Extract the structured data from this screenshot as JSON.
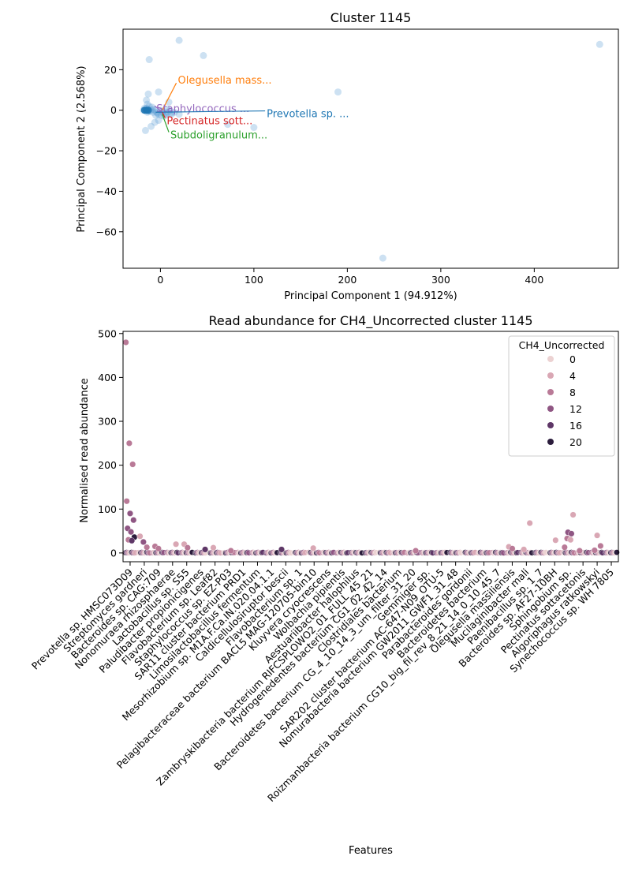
{
  "chart_data": [
    {
      "type": "scatter",
      "title": "Cluster 1145",
      "xlabel": "Principal Component 1 (94.912%)",
      "ylabel": "Principal Component 2 (2.568%)",
      "xlim": [
        -40,
        490
      ],
      "ylim": [
        -78,
        40
      ],
      "xticks": [
        0,
        100,
        200,
        300,
        400
      ],
      "yticks": [
        20,
        0,
        -20,
        -40,
        -60
      ],
      "point_color": "#5b9bd5",
      "highlight_color": "#1f77b4",
      "points": [
        [
          -16,
          0
        ],
        [
          -15,
          1
        ],
        [
          -14,
          -1
        ],
        [
          -13,
          0.5
        ],
        [
          -12,
          2
        ],
        [
          -14,
          3
        ],
        [
          -15,
          5
        ],
        [
          -13,
          -0.5
        ],
        [
          -10,
          0
        ],
        [
          -8,
          -1
        ],
        [
          -6,
          0
        ],
        [
          -4,
          -1
        ],
        [
          -2,
          -2
        ],
        [
          0,
          0
        ],
        [
          2,
          -1
        ],
        [
          4,
          -3
        ],
        [
          6,
          -2
        ],
        [
          8,
          -1
        ],
        [
          10,
          0
        ],
        [
          12,
          -2
        ],
        [
          15,
          -1
        ],
        [
          20,
          -2
        ],
        [
          -16,
          -10
        ],
        [
          -10,
          -8
        ],
        [
          -6,
          -6
        ],
        [
          -2,
          -5
        ],
        [
          -12,
          25
        ],
        [
          -13,
          8
        ],
        [
          -2,
          9
        ],
        [
          9,
          4
        ],
        [
          -8,
          0.5
        ],
        [
          -18,
          0
        ],
        [
          -17,
          1
        ],
        [
          -11,
          -0.5
        ],
        [
          -9,
          1.5
        ],
        [
          -5,
          -2.5
        ],
        [
          -3,
          -1.5
        ],
        [
          1,
          -2.5
        ],
        [
          3,
          -0.5
        ],
        [
          5,
          -1.5
        ],
        [
          7,
          0.5
        ],
        [
          11,
          -1.5
        ],
        [
          20,
          34.5
        ],
        [
          46,
          27
        ],
        [
          72,
          -7
        ],
        [
          100,
          -8.5
        ],
        [
          190,
          9
        ],
        [
          238,
          -73
        ],
        [
          470,
          32.5
        ]
      ],
      "highlighted_points": [
        [
          -17,
          0
        ],
        [
          -15,
          0
        ],
        [
          -13,
          0
        ]
      ],
      "annotations": [
        {
          "text": "Olegusella mass...",
          "color": "#ff7f0e",
          "x": 17,
          "y": 15,
          "px": 2,
          "py": 0
        },
        {
          "text": "Staphylococcus ...",
          "color": "#9467bd",
          "x": -6,
          "y": 1,
          "px": 2,
          "py": -1
        },
        {
          "text": "Prevotella sp. ...",
          "color": "#1f77b4",
          "x": 112,
          "y": -1.5,
          "px": -5,
          "py": -1
        },
        {
          "text": "Pectinatus sott...",
          "color": "#d62728",
          "x": 5,
          "y": -5,
          "px": 2,
          "py": -1
        },
        {
          "text": "Subdoligranulum...",
          "color": "#2ca02c",
          "x": 9,
          "y": -12,
          "px": 2,
          "py": -2
        }
      ]
    },
    {
      "type": "scatter",
      "title": "Read abundance for CH4_Uncorrected cluster 1145",
      "xlabel": "Features",
      "ylabel": "Normalised read abundance",
      "ylim": [
        -20,
        505
      ],
      "yticks": [
        0,
        100,
        200,
        300,
        400,
        500
      ],
      "legend_title": "CH4_Uncorrected",
      "legend_position": "top-right",
      "legend_entries": [
        "0",
        "4",
        "8",
        "12",
        "16",
        "20"
      ],
      "legend_colors": [
        "#ecd2d2",
        "#d9a7b4",
        "#b97a97",
        "#8f5683",
        "#5e3767",
        "#2b1c3c"
      ],
      "categories": [
        "Prevotella sp. HMSC073D09",
        "Streptomyces gardneri",
        "Bacteroides sp. CAG:709",
        "Nonomuraea rhizosphaerae",
        "Lactobacillus sp. S55",
        "Paludibacter propionicigenes",
        "Flavobacterium sp. Leaf82",
        "Staphylococcus sp. EZ-P03",
        "SAR11 cluster bacterium PRD1",
        "Limosilactobacillus fermentum",
        "Mesorhizobium sp. M1A.F.Ca.IN.020.04.1.1",
        "Caldicellulosiruptor bescii",
        "Flavobacterium sp. 1",
        "Pelagibacteraceae bacterium BACL5 MAG-120705-bin10",
        "Kluyvera cryocrescens",
        "Wolbachia pipientis",
        "Aestuariibacter halophilus",
        "Zambryskibacteria bacterium RIFCSPLOWO2_01_FULL_45_21",
        "Hydrogenedentes bacterium CG1_02_42_14",
        "Clostridiales bacterium",
        "Bacteroidetes bacterium CG_4_10_14_3_um_filter_31_20",
        "Gemmiger sp.",
        "SAR202 cluster bacterium AC-647-N09_OTU-5",
        "Nomurabacteria bacterium GW2011_GWF1_31_48",
        "Parabacteroides gordonii",
        "Bacteroidetes bacterium",
        "Roizmanbacteria bacterium CG10_big_fil_rev_8_21_14_0_10_45_7",
        "Olegusella massiliensis",
        "Mucilaginibacter mali",
        "Paenibacillus sp. 1_7",
        "Bacteroides sp. AF27-10BH",
        "Sphingobium sp.",
        "Pectinatus sottacetonis",
        "Algoriphagus ratkowskyi",
        "Synechococcus sp. WH 7805"
      ],
      "max_abundance": [
        480,
        30,
        20,
        15,
        10,
        8,
        6,
        20,
        22,
        10,
        5,
        4,
        8,
        5,
        6,
        12,
        4,
        3,
        3,
        3,
        3,
        2,
        2,
        3,
        3,
        3,
        2,
        3,
        3,
        3,
        2,
        2,
        3,
        2,
        2
      ],
      "notable_points": [
        {
          "category": 0,
          "value": 480,
          "level": 2
        },
        {
          "category": 0,
          "value": 250,
          "level": 2
        },
        {
          "category": 0,
          "value": 202,
          "level": 2
        },
        {
          "category": 0,
          "value": 118,
          "level": 2
        },
        {
          "category": 0,
          "value": 90,
          "level": 3
        },
        {
          "category": 0,
          "value": 75,
          "level": 3
        },
        {
          "category": 0,
          "value": 56,
          "level": 3
        },
        {
          "category": 0,
          "value": 48,
          "level": 3
        },
        {
          "category": 0,
          "value": 36,
          "level": 5
        },
        {
          "category": 0,
          "value": 30,
          "level": 2
        },
        {
          "category": 0,
          "value": 28,
          "level": 4
        },
        {
          "category": 1,
          "value": 38,
          "level": 1
        },
        {
          "category": 1,
          "value": 25,
          "level": 3
        },
        {
          "category": 1,
          "value": 13,
          "level": 2
        },
        {
          "category": 2,
          "value": 15,
          "level": 2
        },
        {
          "category": 2,
          "value": 10,
          "level": 2
        },
        {
          "category": 3,
          "value": 20,
          "level": 1
        },
        {
          "category": 4,
          "value": 20,
          "level": 1
        },
        {
          "category": 4,
          "value": 12,
          "level": 2
        },
        {
          "category": 5,
          "value": 8,
          "level": 4
        },
        {
          "category": 6,
          "value": 12,
          "level": 1
        },
        {
          "category": 7,
          "value": 5,
          "level": 2
        },
        {
          "category": 11,
          "value": 8,
          "level": 4
        },
        {
          "category": 13,
          "value": 11,
          "level": 1
        },
        {
          "category": 20,
          "value": 5,
          "level": 2
        },
        {
          "category": 27,
          "value": 14,
          "level": 1
        },
        {
          "category": 27,
          "value": 10,
          "level": 2
        },
        {
          "category": 28,
          "value": 68,
          "level": 1
        },
        {
          "category": 28,
          "value": 8,
          "level": 1
        },
        {
          "category": 30,
          "value": 29,
          "level": 1
        },
        {
          "category": 31,
          "value": 87,
          "level": 1
        },
        {
          "category": 31,
          "value": 33,
          "level": 2
        },
        {
          "category": 31,
          "value": 30,
          "level": 1
        },
        {
          "category": 31,
          "value": 13,
          "level": 2
        },
        {
          "category": 31,
          "value": 47,
          "level": 3
        },
        {
          "category": 31,
          "value": 44,
          "level": 3
        },
        {
          "category": 32,
          "value": 5,
          "level": 2
        },
        {
          "category": 33,
          "value": 40,
          "level": 1
        },
        {
          "category": 33,
          "value": 16,
          "level": 2
        },
        {
          "category": 33,
          "value": 6,
          "level": 2
        }
      ]
    }
  ]
}
